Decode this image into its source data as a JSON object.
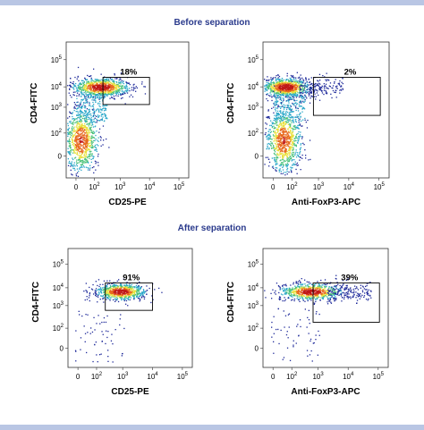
{
  "figure": {
    "before_title": "Before separation",
    "after_title": "After separation"
  },
  "chart_data": [
    {
      "type": "scatter",
      "section": "Before separation",
      "xlabel": "CD25-PE",
      "ylabel": "CD4-FITC",
      "x_ticks": [
        "0",
        "10^2",
        "10^3",
        "10^4",
        "10^5"
      ],
      "y_ticks": [
        "0",
        "10^2",
        "10^3",
        "10^4",
        "10^5"
      ],
      "scale": "biexponential (log)",
      "gate": {
        "x_range": [
          "2x10^2",
          "6x10^4"
        ],
        "y_range": [
          "1.5x10^3",
          "1.5x10^4"
        ],
        "label": "18%"
      },
      "populations": [
        {
          "name": "CD4+ cluster",
          "x_center": "3x10^2",
          "y_center": "6x10^3"
        },
        {
          "name": "CD4- cluster",
          "x_center": "~0",
          "y_center": "~10^2"
        }
      ],
      "colormap": [
        "#1f2a9a",
        "#2aa7c9",
        "#4cc27a",
        "#e8e03a",
        "#e86a1f",
        "#c01818"
      ]
    },
    {
      "type": "scatter",
      "section": "Before separation",
      "xlabel": "Anti-FoxP3-APC",
      "ylabel": "CD4-FITC",
      "x_ticks": [
        "0",
        "10^2",
        "10^3",
        "10^4",
        "10^5"
      ],
      "y_ticks": [
        "0",
        "10^2",
        "10^3",
        "10^4",
        "10^5"
      ],
      "gate": {
        "x_range": [
          "5x10^2",
          "6x10^4"
        ],
        "y_range": [
          "1.5x10^3",
          "2x10^4"
        ],
        "label": "2%"
      }
    },
    {
      "type": "scatter",
      "section": "After separation",
      "xlabel": "CD25-PE",
      "ylabel": "CD4-FITC",
      "x_ticks": [
        "0",
        "10^2",
        "10^3",
        "10^4",
        "10^5"
      ],
      "y_ticks": [
        "0",
        "10^2",
        "10^3",
        "10^4",
        "10^5"
      ],
      "gate": {
        "x_range": [
          "2x10^2",
          "6x10^4"
        ],
        "y_range": [
          "1.5x10^3",
          "1.5x10^4"
        ],
        "label": "91%"
      }
    },
    {
      "type": "scatter",
      "section": "After separation",
      "xlabel": "Anti-FoxP3-APC",
      "ylabel": "CD4-FITC",
      "x_ticks": [
        "0",
        "10^2",
        "10^3",
        "10^4",
        "10^5"
      ],
      "y_ticks": [
        "0",
        "10^2",
        "10^3",
        "10^4",
        "10^5"
      ],
      "gate": {
        "x_range": [
          "5x10^2",
          "6x10^4"
        ],
        "y_range": [
          "1.5x10^3",
          "2x10^4"
        ],
        "label": "39%"
      }
    }
  ]
}
